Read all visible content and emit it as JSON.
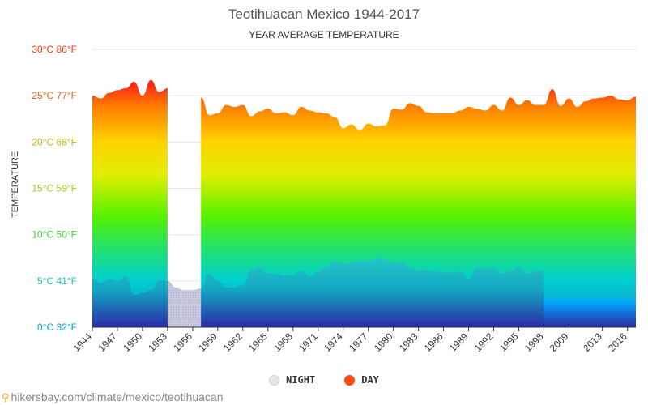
{
  "title": "Teotihuacan Mexico 1944-2017",
  "subtitle": "YEAR AVERAGE TEMPERATURE",
  "footer_text": "hikersbay.com/climate/mexico/teotihuacan",
  "legend": {
    "night_label": "NIGHT",
    "day_label": "DAY"
  },
  "colors": {
    "day": "#ff4a12",
    "night": "#e6e6ea",
    "grid": "#e6e6e6",
    "axis": "#333333"
  },
  "chart_data": {
    "type": "area",
    "ylabel": "TEMPERATURE",
    "ylim": [
      0,
      30
    ],
    "y_ticks": [
      {
        "value": 0,
        "label": "0°C 32°F",
        "color": "#00a2d2"
      },
      {
        "value": 5,
        "label": "5°C 41°F",
        "color": "#14c9b2"
      },
      {
        "value": 10,
        "label": "10°C 50°F",
        "color": "#3dd13a"
      },
      {
        "value": 15,
        "label": "15°C 59°F",
        "color": "#9ccc1a"
      },
      {
        "value": 20,
        "label": "20°C 68°F",
        "color": "#c9b20c"
      },
      {
        "value": 25,
        "label": "25°C 77°F",
        "color": "#e0661c"
      },
      {
        "value": 30,
        "label": "30°C 86°F",
        "color": "#f23c0c"
      }
    ],
    "x_tick_labels": [
      "1944",
      "1947",
      "1950",
      "1953",
      "1956",
      "1959",
      "1962",
      "1965",
      "1968",
      "1971",
      "1974",
      "1977",
      "1980",
      "1983",
      "1986",
      "1989",
      "1992",
      "1995",
      "1998",
      "2009",
      "2013",
      "2016"
    ],
    "x": [
      "1944",
      "1945",
      "1946",
      "1947",
      "1948",
      "1949",
      "1950",
      "1951",
      "1952",
      "1953",
      "1954",
      "1955",
      "1956",
      "1957",
      "1958",
      "1959",
      "1960",
      "1961",
      "1962",
      "1963",
      "1964",
      "1965",
      "1966",
      "1967",
      "1968",
      "1969",
      "1970",
      "1971",
      "1972",
      "1973",
      "1974",
      "1975",
      "1976",
      "1977",
      "1978",
      "1979",
      "1980",
      "1981",
      "1982",
      "1983",
      "1984",
      "1985",
      "1986",
      "1987",
      "1988",
      "1989",
      "1990",
      "1991",
      "1992",
      "1993",
      "1994",
      "1995",
      "1996",
      "1997",
      "1998",
      "2007",
      "2008",
      "2009",
      "2010",
      "2011",
      "2012",
      "2013",
      "2014",
      "2015",
      "2016",
      "2017"
    ],
    "series": [
      {
        "name": "DAY",
        "values": [
          25.0,
          24.7,
          25.3,
          25.6,
          25.8,
          26.5,
          25.0,
          26.7,
          25.4,
          25.8,
          null,
          null,
          null,
          24.8,
          22.9,
          23.1,
          24.0,
          23.8,
          24.0,
          22.8,
          23.3,
          23.6,
          23.1,
          23.2,
          22.9,
          23.8,
          23.4,
          23.2,
          23.1,
          22.7,
          21.5,
          21.9,
          21.3,
          22.0,
          21.7,
          21.8,
          23.6,
          23.5,
          24.2,
          23.9,
          23.2,
          23.1,
          23.1,
          23.1,
          23.4,
          23.8,
          23.6,
          23.4,
          24.0,
          23.4,
          24.8,
          24.0,
          24.5,
          24.0,
          24.0,
          25.7,
          23.9,
          24.7,
          23.8,
          24.4,
          24.7,
          24.8,
          25.0,
          24.6,
          24.5,
          24.9
        ]
      },
      {
        "name": "NIGHT",
        "values": [
          5.3,
          4.8,
          5.2,
          5.0,
          5.5,
          3.5,
          3.7,
          4.0,
          5.1,
          5.0,
          4.3,
          4.0,
          4.0,
          4.2,
          5.8,
          5.0,
          4.3,
          4.3,
          4.5,
          6.2,
          6.4,
          5.8,
          5.7,
          5.6,
          5.6,
          6.1,
          5.5,
          6.0,
          6.5,
          7.2,
          6.8,
          6.9,
          7.2,
          7.1,
          7.5,
          7.3,
          6.9,
          7.0,
          6.4,
          6.1,
          6.2,
          6.0,
          5.9,
          5.9,
          6.0,
          5.2,
          6.4,
          6.3,
          6.4,
          5.8,
          6.0,
          6.5,
          5.8,
          6.0,
          6.2,
          null,
          null,
          null,
          null,
          null,
          null,
          null,
          null,
          null,
          null,
          null
        ]
      }
    ]
  }
}
